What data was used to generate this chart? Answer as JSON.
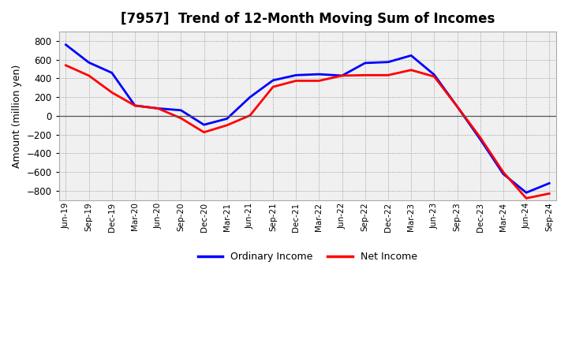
{
  "title": "[7957]  Trend of 12-Month Moving Sum of Incomes",
  "ylabel": "Amount (million yen)",
  "xlim_labels": [
    "Jun-19",
    "Sep-19",
    "Dec-19",
    "Mar-20",
    "Jun-20",
    "Sep-20",
    "Dec-20",
    "Mar-21",
    "Jun-21",
    "Sep-21",
    "Dec-21",
    "Mar-22",
    "Jun-22",
    "Sep-22",
    "Dec-22",
    "Mar-23",
    "Jun-23",
    "Sep-23",
    "Dec-23",
    "Mar-24",
    "Jun-24",
    "Sep-24"
  ],
  "ordinary_income": [
    760,
    570,
    460,
    110,
    80,
    60,
    -95,
    -30,
    200,
    380,
    435,
    445,
    430,
    565,
    575,
    645,
    440,
    100,
    -250,
    -620,
    -820,
    -720
  ],
  "net_income": [
    540,
    430,
    250,
    110,
    80,
    -25,
    -175,
    -100,
    5,
    310,
    375,
    375,
    430,
    435,
    435,
    490,
    420,
    100,
    -230,
    -600,
    -880,
    -830
  ],
  "ordinary_color": "#0000ff",
  "net_color": "#ff0000",
  "ylim": [
    -900,
    900
  ],
  "yticks": [
    -800,
    -600,
    -400,
    -200,
    0,
    200,
    400,
    600,
    800
  ],
  "bg_color": "#ffffff",
  "plot_bg_color": "#f0f0f0",
  "legend_labels": [
    "Ordinary Income",
    "Net Income"
  ],
  "title_fontsize": 12,
  "label_fontsize": 9,
  "linewidth": 2.0
}
